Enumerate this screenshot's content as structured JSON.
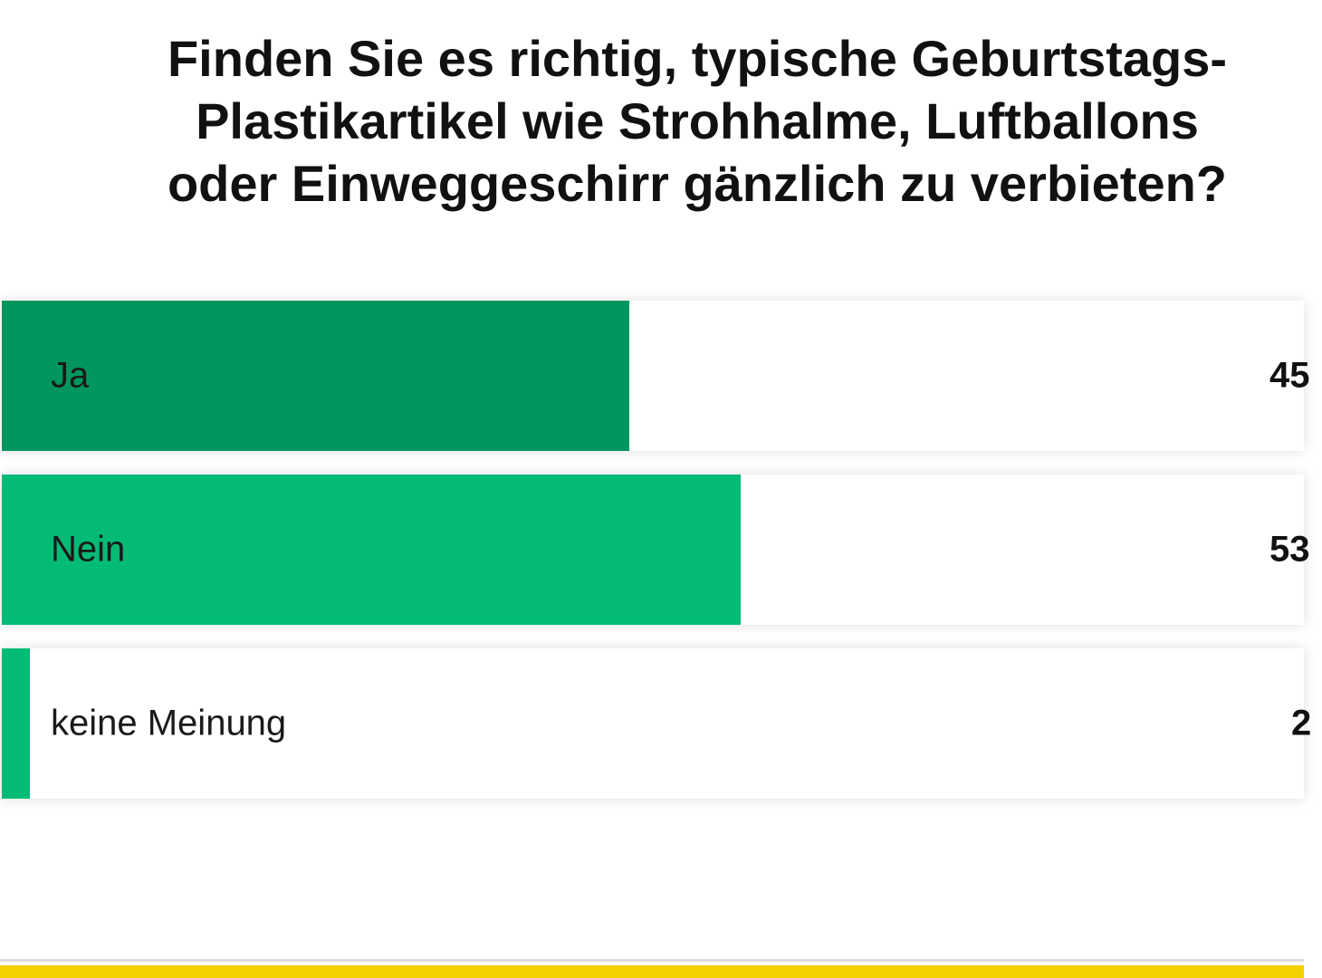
{
  "poll": {
    "question": "Finden Sie es richtig, typische Geburtstags-\nPlastikartikel wie Strohhalme, Luftballons\noder Einweggeschirr gänzlich zu verbieten?",
    "options": [
      {
        "label": "Ja",
        "percent_text": "45",
        "value": 45,
        "bar_color": "#02965f"
      },
      {
        "label": "Nein",
        "percent_text": "53",
        "value": 53,
        "bar_color": "#04bb75"
      },
      {
        "label": "keine Meinung",
        "percent_text": "2",
        "value": 2,
        "bar_color": "#04bb75"
      }
    ]
  },
  "colors": {
    "accent_yellow": "#f4d000",
    "divider": "#dcdcdc"
  }
}
